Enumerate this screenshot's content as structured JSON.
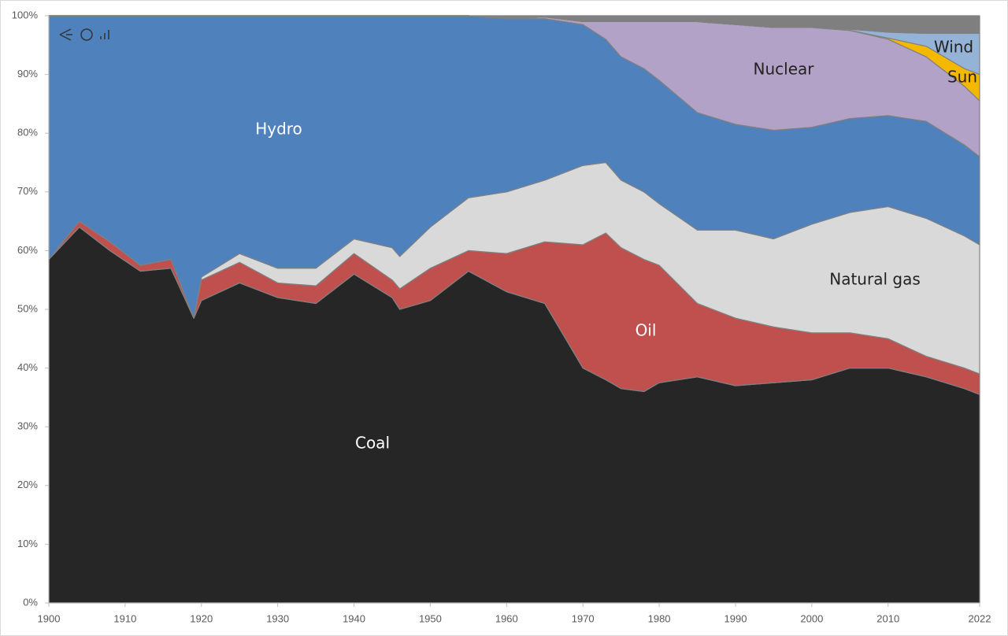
{
  "chart_data": {
    "type": "stacked-area",
    "x": [
      1900,
      1904,
      1908,
      1912,
      1916,
      1919,
      1920,
      1925,
      1930,
      1935,
      1940,
      1945,
      1946,
      1950,
      1955,
      1960,
      1965,
      1970,
      1973,
      1975,
      1978,
      1980,
      1985,
      1990,
      1995,
      2000,
      2005,
      2010,
      2015,
      2020,
      2022
    ],
    "series": [
      {
        "name": "Coal",
        "color": "#262626",
        "values": [
          58.5,
          64,
          60,
          56.5,
          57,
          48.5,
          51.5,
          54.5,
          52,
          51,
          56,
          52,
          50,
          51.5,
          56.5,
          53,
          51,
          40,
          38,
          36.5,
          36,
          37.5,
          38.5,
          37,
          37.5,
          38,
          40,
          40,
          38.5,
          36.5,
          35.5
        ]
      },
      {
        "name": "Oil",
        "color": "#c0504d",
        "values": [
          0,
          1,
          1.5,
          1,
          1.5,
          0,
          3.5,
          3.5,
          2.5,
          3,
          3.5,
          3,
          3.5,
          5.5,
          3.5,
          6.5,
          10.5,
          21,
          25,
          24,
          22.5,
          20,
          12.5,
          11.5,
          9.5,
          8,
          6,
          5,
          3.5,
          3.5,
          3.5
        ]
      },
      {
        "name": "Natural gas",
        "color": "#d9d9d9",
        "values": [
          0,
          0,
          0,
          0,
          0,
          0,
          0.5,
          1.5,
          2.5,
          3,
          2.5,
          5.5,
          5.5,
          7,
          9,
          10.5,
          10.5,
          13.5,
          12,
          11.5,
          11.5,
          10.5,
          12.5,
          15,
          15,
          18.5,
          20.5,
          22.5,
          23.5,
          22.5,
          22
        ]
      },
      {
        "name": "Hydro",
        "color": "#4f81bd",
        "values": [
          41.5,
          35,
          38.5,
          42.5,
          41.5,
          51.5,
          44.5,
          40.5,
          43,
          43,
          38,
          39.5,
          41,
          36,
          31,
          29.5,
          27.5,
          24,
          21,
          21,
          21,
          21,
          20,
          18,
          18.5,
          16.5,
          16,
          15.5,
          16.5,
          15.5,
          15
        ]
      },
      {
        "name": "Nuclear",
        "color": "#b3a2c7",
        "values": [
          0,
          0,
          0,
          0,
          0,
          0,
          0,
          0,
          0,
          0,
          0,
          0,
          0,
          0,
          0,
          0,
          0.3,
          0.5,
          3,
          6,
          8,
          10,
          15.5,
          17,
          17.5,
          17,
          15,
          13,
          11,
          10,
          9.5
        ]
      },
      {
        "name": "Sun",
        "color": "#f5b800",
        "values": [
          0,
          0,
          0,
          0,
          0,
          0,
          0,
          0,
          0,
          0,
          0,
          0,
          0,
          0,
          0,
          0,
          0,
          0,
          0,
          0,
          0,
          0,
          0,
          0,
          0,
          0,
          0,
          0.2,
          1.8,
          3,
          4.5
        ]
      },
      {
        "name": "Wind",
        "color": "#95b3d7",
        "values": [
          0,
          0,
          0,
          0,
          0,
          0,
          0,
          0,
          0,
          0,
          0,
          0,
          0,
          0,
          0,
          0,
          0,
          0,
          0,
          0,
          0,
          0,
          0,
          0,
          0,
          0,
          0.2,
          1,
          2.2,
          6,
          7
        ]
      },
      {
        "color": "#7f7f7f",
        "values": [
          0,
          0,
          0,
          0,
          0,
          0,
          0,
          0,
          0,
          0,
          0,
          0,
          0,
          0,
          0,
          0.5,
          0.2,
          1,
          1,
          1,
          1,
          1,
          1,
          1.5,
          2,
          2,
          2.3,
          2.8,
          3,
          3,
          3
        ]
      }
    ],
    "xlim": [
      1900,
      2022
    ],
    "xticks": [
      1900,
      1910,
      1920,
      1930,
      1940,
      1950,
      1960,
      1970,
      1980,
      1990,
      2000,
      2010,
      2022
    ],
    "ylim": [
      0,
      100
    ],
    "yticks": [
      {
        "value": 0,
        "label": "0%"
      },
      {
        "value": 10,
        "label": "10%"
      },
      {
        "value": 20,
        "label": "20%"
      },
      {
        "value": 30,
        "label": "30%"
      },
      {
        "value": 40,
        "label": "40%"
      },
      {
        "value": 50,
        "label": "50%"
      },
      {
        "value": 60,
        "label": "60%"
      },
      {
        "value": 70,
        "label": "70%"
      },
      {
        "value": 80,
        "label": "80%"
      },
      {
        "value": 90,
        "label": "90%"
      },
      {
        "value": 100,
        "label": "100%"
      }
    ]
  }
}
